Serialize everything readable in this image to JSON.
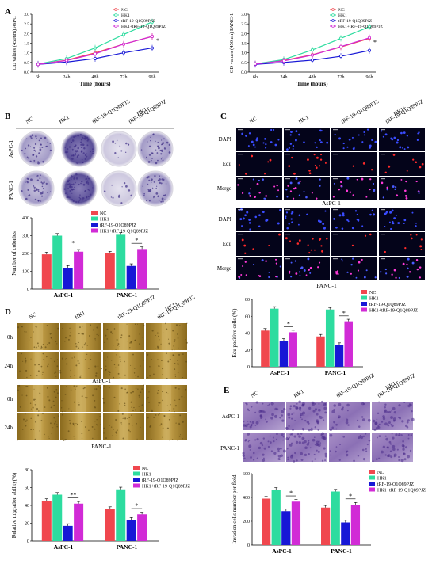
{
  "panels": {
    "A": "A",
    "B": "B",
    "C": "C",
    "D": "D",
    "E": "E"
  },
  "colors": {
    "nc": "#f0474e",
    "hk1": "#2ddc9f",
    "trf": "#1717d6",
    "hk1_trf": "#d12bd6"
  },
  "groups": [
    "NC",
    "HK1",
    "tRF-19-Q1Q89PJZ",
    "HK1+tRF-19-Q1Q89PJZ"
  ],
  "image_col_labels": [
    "NC",
    "HK1",
    "tRF-19-Q1Q89PJZ",
    "HK1+",
    "tRF-19-Q1Q89PJZ"
  ],
  "a1": {
    "chart_data": {
      "type": "line",
      "ylabel": "OD values (450nm) AsPC",
      "xlabel": "Time (hours)",
      "categories": [
        "6h",
        "24h",
        "48h",
        "72h",
        "96h"
      ],
      "ylim": [
        0,
        3
      ],
      "yticks": [
        "0.0",
        "0.5",
        "1.0",
        "1.5",
        "2.0",
        "2.5",
        "3.0"
      ],
      "series": [
        {
          "name": "NC",
          "values": [
            0.4,
            0.62,
            1.0,
            1.45,
            1.85
          ]
        },
        {
          "name": "HK1",
          "values": [
            0.42,
            0.7,
            1.25,
            1.95,
            2.6
          ]
        },
        {
          "name": "tRF-19-Q1Q89PJZ",
          "values": [
            0.4,
            0.52,
            0.7,
            1.0,
            1.25
          ]
        },
        {
          "name": "HK1+tRF-19-Q1Q89PJZ",
          "values": [
            0.4,
            0.6,
            0.95,
            1.45,
            1.85
          ]
        }
      ],
      "star": "*"
    }
  },
  "a2": {
    "chart_data": {
      "type": "line",
      "ylabel": "OD values (450nm) PANC-1",
      "xlabel": "Time (hours)",
      "categories": [
        "6h",
        "24h",
        "48h",
        "72h",
        "96h"
      ],
      "ylim": [
        0,
        3
      ],
      "yticks": [
        "0.0",
        "0.5",
        "1.0",
        "1.5",
        "2.0",
        "2.5",
        "3.0"
      ],
      "series": [
        {
          "name": "NC",
          "values": [
            0.42,
            0.6,
            0.9,
            1.3,
            1.75
          ]
        },
        {
          "name": "HK1",
          "values": [
            0.42,
            0.65,
            1.15,
            1.75,
            2.35
          ]
        },
        {
          "name": "tRF-19-Q1Q89PJZ",
          "values": [
            0.4,
            0.5,
            0.62,
            0.82,
            1.12
          ]
        },
        {
          "name": "HK1+tRF-19-Q1Q89PJZ",
          "values": [
            0.42,
            0.58,
            0.88,
            1.32,
            1.78
          ]
        }
      ],
      "star": "*"
    }
  },
  "b": {
    "row_labels": [
      "AsPC-1",
      "PANC-1"
    ],
    "chart_data": {
      "type": "bar",
      "ylabel": "Number of colonies",
      "categories": [
        "AsPC-1",
        "PANC-1"
      ],
      "ylim": [
        0,
        400
      ],
      "yticks": [
        "0",
        "100",
        "200",
        "300",
        "400"
      ],
      "series": [
        {
          "name": "NC",
          "values": [
            195,
            200
          ]
        },
        {
          "name": "HK1",
          "values": [
            300,
            305
          ]
        },
        {
          "name": "tRF-19-Q1Q89PJZ",
          "values": [
            120,
            130
          ]
        },
        {
          "name": "HK1+tRF-19-Q1Q89PJZ",
          "values": [
            210,
            225
          ]
        }
      ],
      "star": "*"
    }
  },
  "c": {
    "row_labels": [
      "DAPI",
      "Edu",
      "Merge",
      "DAPI",
      "Edu",
      "Merge"
    ],
    "group_labels": [
      "AsPC-1",
      "PANC-1"
    ],
    "chart_data": {
      "type": "bar",
      "ylabel": "Edu positive cells (%)",
      "categories": [
        "AsPC-1",
        "PANC-1"
      ],
      "ylim": [
        0,
        80
      ],
      "yticks": [
        "0",
        "20",
        "40",
        "60",
        "80"
      ],
      "series": [
        {
          "name": "NC",
          "values": [
            43,
            36
          ]
        },
        {
          "name": "HK1",
          "values": [
            69,
            68
          ]
        },
        {
          "name": "tRF-19-Q1Q89PJZ",
          "values": [
            31,
            26
          ]
        },
        {
          "name": "HK1+tRF-19-Q1Q89PJZ",
          "values": [
            41,
            54
          ]
        }
      ],
      "star": "*"
    }
  },
  "d": {
    "row_labels": [
      "0h",
      "24h",
      "0h",
      "24h"
    ],
    "group_labels": [
      "AsPC-1",
      "PANC-1"
    ],
    "chart_data": {
      "type": "bar",
      "ylabel": "Relative migration ability(%)",
      "categories": [
        "AsPC-1",
        "PANC-1"
      ],
      "ylim": [
        0,
        80
      ],
      "yticks": [
        "0",
        "20",
        "40",
        "60",
        "80"
      ],
      "series": [
        {
          "name": "NC",
          "values": [
            45,
            36
          ]
        },
        {
          "name": "HK1",
          "values": [
            52,
            58
          ]
        },
        {
          "name": "tRF-19-Q1Q89PJZ",
          "values": [
            17,
            24
          ]
        },
        {
          "name": "HK1+tRF-19-Q1Q89PJZ",
          "values": [
            42,
            30
          ]
        }
      ],
      "stars": [
        "**",
        "*"
      ]
    }
  },
  "e": {
    "row_labels": [
      "AsPC-1",
      "PANC-1"
    ],
    "chart_data": {
      "type": "bar",
      "ylabel": "Invasion cells number per field",
      "categories": [
        "AsPC-1",
        "PANC-1"
      ],
      "ylim": [
        0,
        600
      ],
      "yticks": [
        "0",
        "200",
        "400",
        "600"
      ],
      "series": [
        {
          "name": "NC",
          "values": [
            390,
            315
          ]
        },
        {
          "name": "HK1",
          "values": [
            465,
            450
          ]
        },
        {
          "name": "tRF-19-Q1Q89PJZ",
          "values": [
            285,
            190
          ]
        },
        {
          "name": "HK1+tRF-19-Q1Q89PJZ",
          "values": [
            365,
            340
          ]
        }
      ],
      "star": "*"
    }
  }
}
